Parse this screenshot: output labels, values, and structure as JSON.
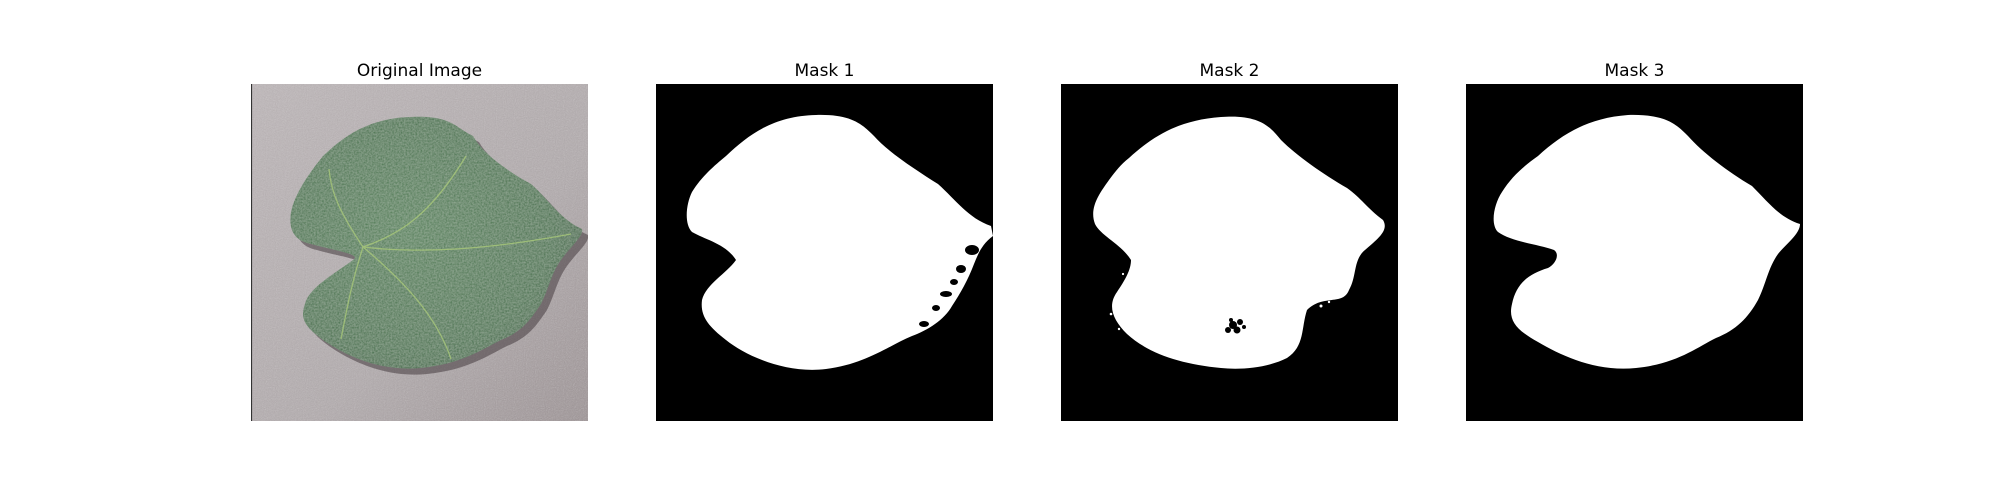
{
  "figure": {
    "panels": [
      {
        "title": "Original Image",
        "content": "leaf-photo"
      },
      {
        "title": "Mask 1",
        "content": "binary-mask"
      },
      {
        "title": "Mask 2",
        "content": "binary-mask"
      },
      {
        "title": "Mask 3",
        "content": "binary-mask"
      }
    ],
    "colors": {
      "background": "#ffffff",
      "mask_foreground": "#ffffff",
      "mask_background": "#000000",
      "leaf": "#3f6e45",
      "surface": "#b5aeb0"
    }
  }
}
